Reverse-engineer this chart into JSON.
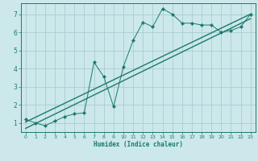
{
  "xlabel": "Humidex (Indice chaleur)",
  "bg_color": "#cce8ea",
  "grid_color": "#aacdd2",
  "line_color": "#1a7a6e",
  "xlim": [
    -0.5,
    23.5
  ],
  "ylim": [
    0.5,
    7.6
  ],
  "xticks": [
    0,
    1,
    2,
    3,
    4,
    5,
    6,
    7,
    8,
    9,
    10,
    11,
    12,
    13,
    14,
    15,
    16,
    17,
    18,
    19,
    20,
    21,
    22,
    23
  ],
  "yticks": [
    1,
    2,
    3,
    4,
    5,
    6,
    7
  ],
  "scatter_x": [
    0,
    1,
    2,
    3,
    4,
    5,
    6,
    7,
    8,
    9,
    10,
    11,
    12,
    13,
    14,
    15,
    16,
    17,
    18,
    19,
    20,
    21,
    22,
    23
  ],
  "scatter_y": [
    1.2,
    1.0,
    0.85,
    1.1,
    1.35,
    1.5,
    1.55,
    4.35,
    3.55,
    1.9,
    4.1,
    5.55,
    6.55,
    6.3,
    7.3,
    7.0,
    6.5,
    6.5,
    6.4,
    6.4,
    6.0,
    6.1,
    6.3,
    7.0
  ],
  "line1_x": [
    0,
    23
  ],
  "line1_y": [
    1.05,
    7.0
  ],
  "line2_x": [
    0,
    23
  ],
  "line2_y": [
    0.7,
    6.75
  ]
}
